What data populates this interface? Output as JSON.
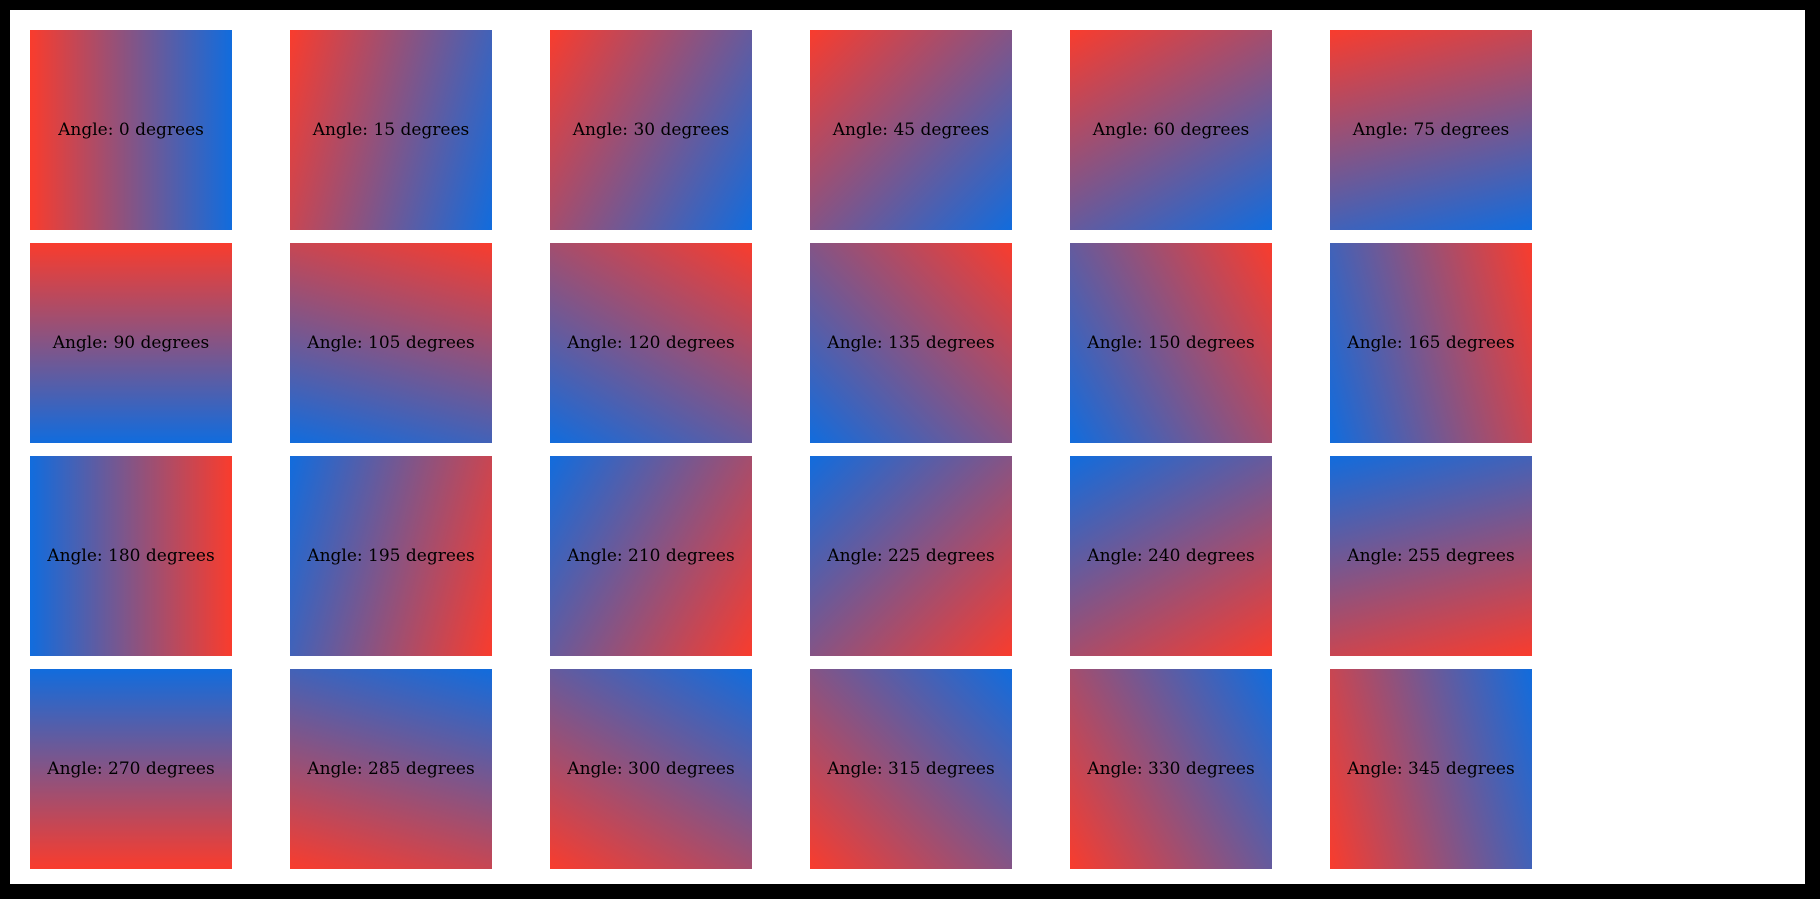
{
  "frame": {
    "border_color": "#000000",
    "background_color": "#ffffff"
  },
  "gradient": {
    "start_color": "#f93c2d",
    "end_color": "#116cdd"
  },
  "swatches": [
    {
      "angle": 0,
      "label": "Angle: 0 degrees"
    },
    {
      "angle": 15,
      "label": "Angle: 15 degrees"
    },
    {
      "angle": 30,
      "label": "Angle: 30 degrees"
    },
    {
      "angle": 45,
      "label": "Angle: 45 degrees"
    },
    {
      "angle": 60,
      "label": "Angle: 60 degrees"
    },
    {
      "angle": 75,
      "label": "Angle: 75 degrees"
    },
    {
      "angle": 90,
      "label": "Angle: 90 degrees"
    },
    {
      "angle": 105,
      "label": "Angle: 105 degrees"
    },
    {
      "angle": 120,
      "label": "Angle: 120 degrees"
    },
    {
      "angle": 135,
      "label": "Angle: 135 degrees"
    },
    {
      "angle": 150,
      "label": "Angle: 150 degrees"
    },
    {
      "angle": 165,
      "label": "Angle: 165 degrees"
    },
    {
      "angle": 180,
      "label": "Angle: 180 degrees"
    },
    {
      "angle": 195,
      "label": "Angle: 195 degrees"
    },
    {
      "angle": 210,
      "label": "Angle: 210 degrees"
    },
    {
      "angle": 225,
      "label": "Angle: 225 degrees"
    },
    {
      "angle": 240,
      "label": "Angle: 240 degrees"
    },
    {
      "angle": 255,
      "label": "Angle: 255 degrees"
    },
    {
      "angle": 270,
      "label": "Angle: 270 degrees"
    },
    {
      "angle": 285,
      "label": "Angle: 285 degrees"
    },
    {
      "angle": 300,
      "label": "Angle: 300 degrees"
    },
    {
      "angle": 315,
      "label": "Angle: 315 degrees"
    },
    {
      "angle": 330,
      "label": "Angle: 330 degrees"
    },
    {
      "angle": 345,
      "label": "Angle: 345 degrees"
    }
  ]
}
